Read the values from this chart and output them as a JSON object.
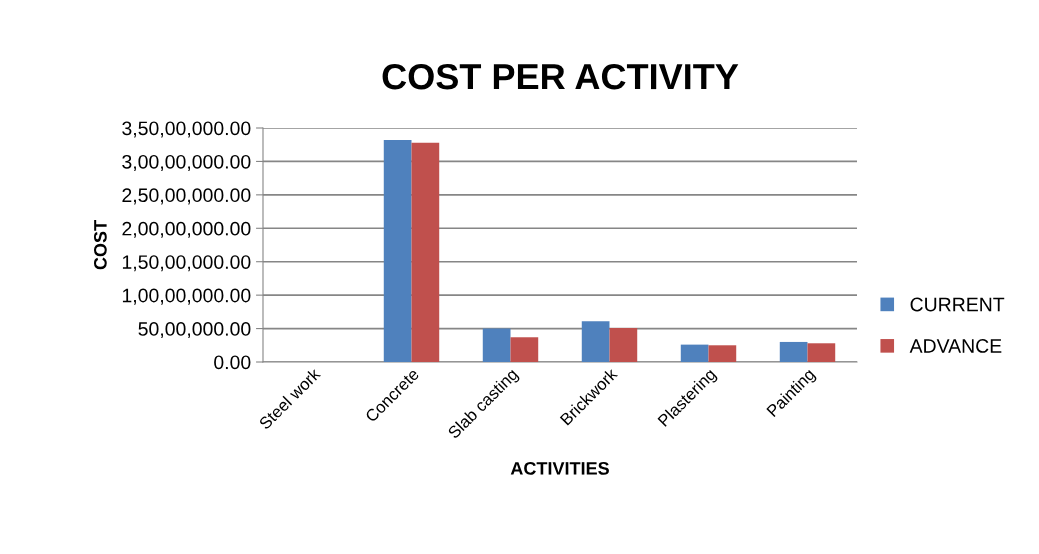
{
  "chart_data": {
    "type": "bar",
    "title": "COST PER ACTIVITY",
    "xlabel": "ACTIVITIES",
    "ylabel": "COST",
    "categories": [
      "Steel work",
      "Concrete",
      "Slab casting",
      "Brickwork",
      "Plastering",
      "Painting"
    ],
    "series": [
      {
        "name": "CURRENT",
        "color": "#4f81bd",
        "values": [
          null,
          33200000,
          5000000,
          6100000,
          2600000,
          3000000
        ]
      },
      {
        "name": "ADVANCE",
        "color": "#c0504d",
        "values": [
          null,
          32800000,
          3700000,
          5100000,
          2500000,
          2800000
        ]
      }
    ],
    "ylim": [
      0,
      35000000
    ],
    "yticks": [
      {
        "value": 0,
        "label": "0.00"
      },
      {
        "value": 5000000,
        "label": "50,00,000.00"
      },
      {
        "value": 10000000,
        "label": "1,00,00,000.00"
      },
      {
        "value": 15000000,
        "label": "1,50,00,000.00"
      },
      {
        "value": 20000000,
        "label": "2,00,00,000.00"
      },
      {
        "value": 25000000,
        "label": "2,50,00,000.00"
      },
      {
        "value": 30000000,
        "label": "3,00,00,000.00"
      },
      {
        "value": 35000000,
        "label": "3,50,00,000.00"
      }
    ],
    "grid": "y",
    "legend": "right"
  }
}
